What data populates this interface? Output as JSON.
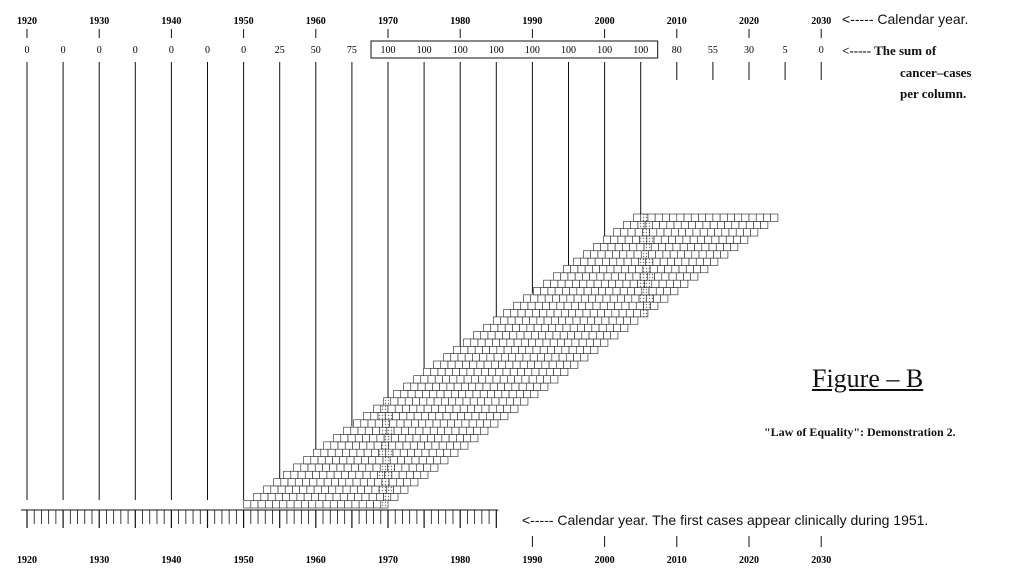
{
  "figure": {
    "title": "Figure – B",
    "subtitle": "\"Law of Equality\": Demonstration 2."
  },
  "annotations": {
    "calendar_year_top": "<----- Calendar year.",
    "sum_note": "<----- The sum of",
    "sum_note_line2": "cancer–cases",
    "sum_note_line3": "per column.",
    "calendar_year_bottom": "<----- Calendar year.  The first cases appear clinically during 1951."
  },
  "chart_data": {
    "type": "diagram",
    "top_axis_years": [
      1920,
      1930,
      1940,
      1950,
      1960,
      1970,
      1980,
      1990,
      2000,
      2010,
      2020,
      2030
    ],
    "bottom_axis_years": [
      1920,
      1930,
      1940,
      1950,
      1960,
      1970,
      1980,
      1990,
      2000,
      2010,
      2020,
      2030
    ],
    "column_years": [
      1920,
      1925,
      1930,
      1935,
      1940,
      1945,
      1950,
      1955,
      1960,
      1965,
      1970,
      1975,
      1980,
      1985,
      1990,
      1995,
      2000,
      2005,
      2010,
      2015,
      2020,
      2025,
      2030
    ],
    "column_sums": [
      "0",
      "0",
      "0",
      "0",
      "0",
      "0",
      "0",
      "25",
      "50",
      "75",
      "100",
      "100",
      "100",
      "100",
      "100",
      "100",
      "100",
      "100",
      "80",
      "55",
      "30",
      "5",
      "0"
    ],
    "boxed_sum_range": [
      1970,
      2005
    ],
    "staircase": {
      "rows": 40,
      "row_width_years": 20,
      "first_row_start_year": 1951,
      "last_row_start_year": 2005,
      "shaded_columns_years": [
        1970,
        2006
      ]
    },
    "bottom_ruler_range_years": [
      1920,
      1985
    ]
  }
}
